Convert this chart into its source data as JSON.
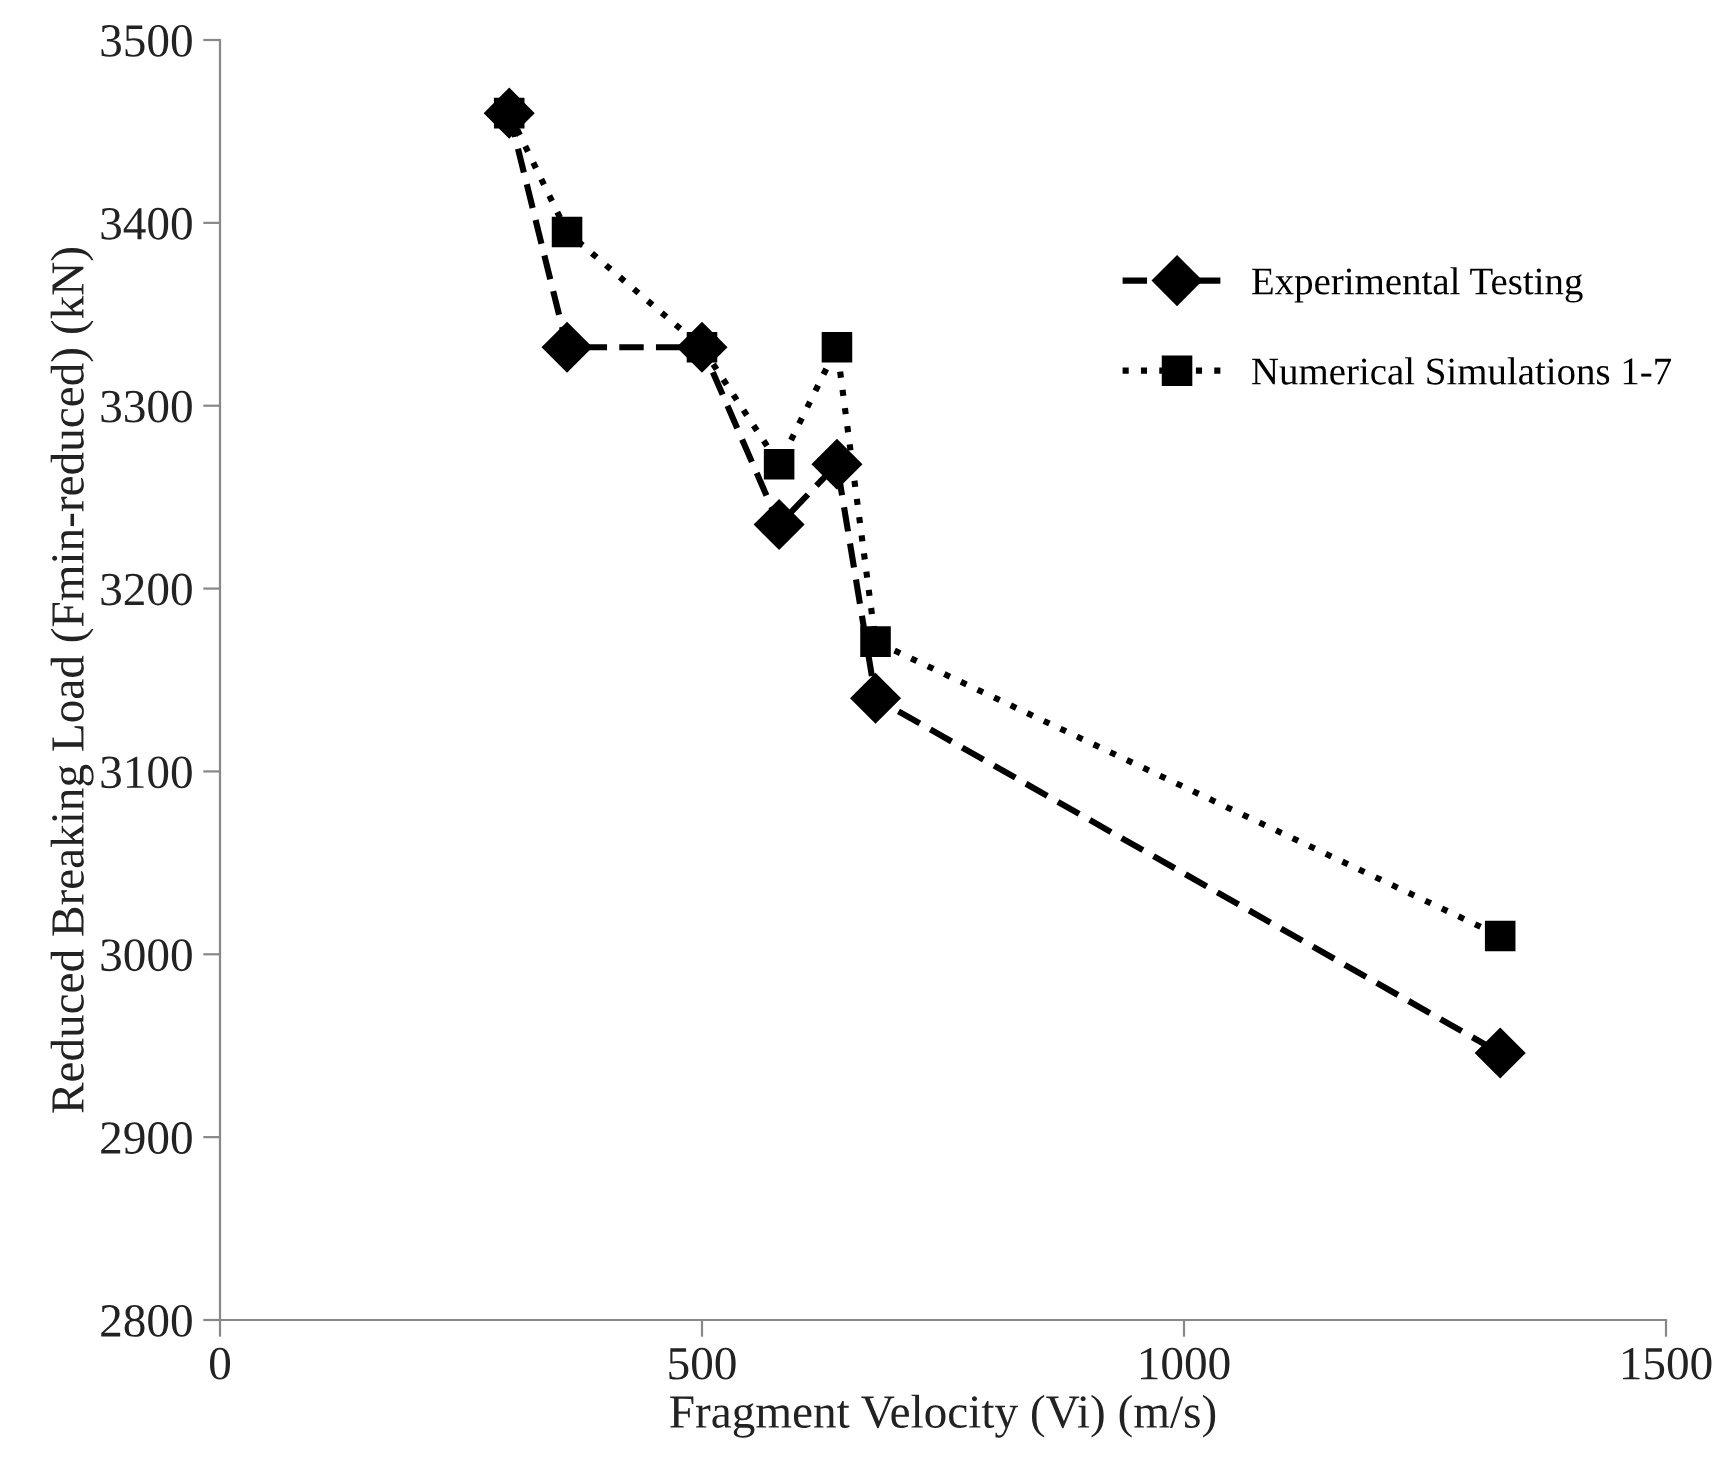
{
  "chart_data": {
    "type": "line",
    "xlabel": "Fragment Velocity (Vi) (m/s)",
    "ylabel": "Reduced Breaking Load (Fmin-reduced) (kN)",
    "xlim": [
      0,
      1500
    ],
    "xticks": [
      0,
      500,
      1000,
      1500
    ],
    "ylim": [
      2800,
      3500
    ],
    "yticks": [
      2800,
      2900,
      3000,
      3100,
      3200,
      3300,
      3400,
      3500
    ],
    "grid": false,
    "legend": "right",
    "series": [
      {
        "name": "Experimental Testing",
        "color": "#000000",
        "marker": "diamond",
        "line_style": "dashed",
        "x": [
          300,
          360,
          500,
          580,
          640,
          680,
          1328
        ],
        "values": [
          3460,
          3332,
          3332,
          3235,
          3268,
          3140,
          2946
        ]
      },
      {
        "name": "Numerical Simulations 1-7",
        "color": "#000000",
        "marker": "square",
        "line_style": "dotted",
        "x": [
          300,
          360,
          500,
          580,
          640,
          680,
          1328
        ],
        "values": [
          3460,
          3395,
          3332,
          3268,
          3332,
          3171,
          3010
        ]
      }
    ]
  }
}
